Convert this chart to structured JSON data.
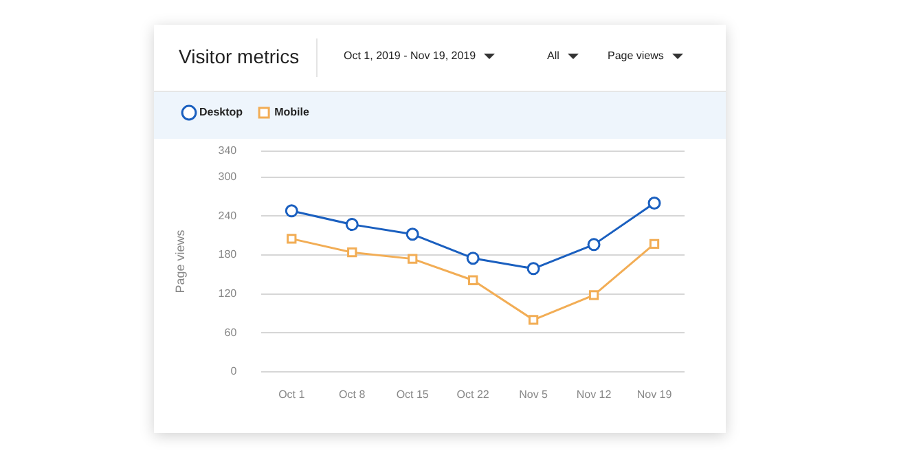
{
  "chart_data": {
    "type": "line",
    "title": "Visitor metrics",
    "ylabel": "Page views",
    "annotations": [
      "Oct 1, 2019 - Nov 19, 2019",
      "All",
      "Page views"
    ],
    "categories": [
      "Oct 1",
      "Oct 8",
      "Oct 15",
      "Oct 22",
      "Nov 5",
      "Nov 12",
      "Nov 19"
    ],
    "series": [
      {
        "name": "Desktop",
        "color": "#1a5fbf",
        "marker": "circle",
        "values": [
          248,
          227,
          212,
          175,
          159,
          196,
          260
        ]
      },
      {
        "name": "Mobile",
        "color": "#f2ad55",
        "marker": "square",
        "values": [
          205,
          184,
          174,
          141,
          80,
          118,
          197
        ]
      }
    ],
    "ylim": [
      0,
      340
    ],
    "yticks": [
      0,
      60,
      120,
      180,
      240,
      300,
      340
    ],
    "grid": "y",
    "legend": "top left"
  }
}
